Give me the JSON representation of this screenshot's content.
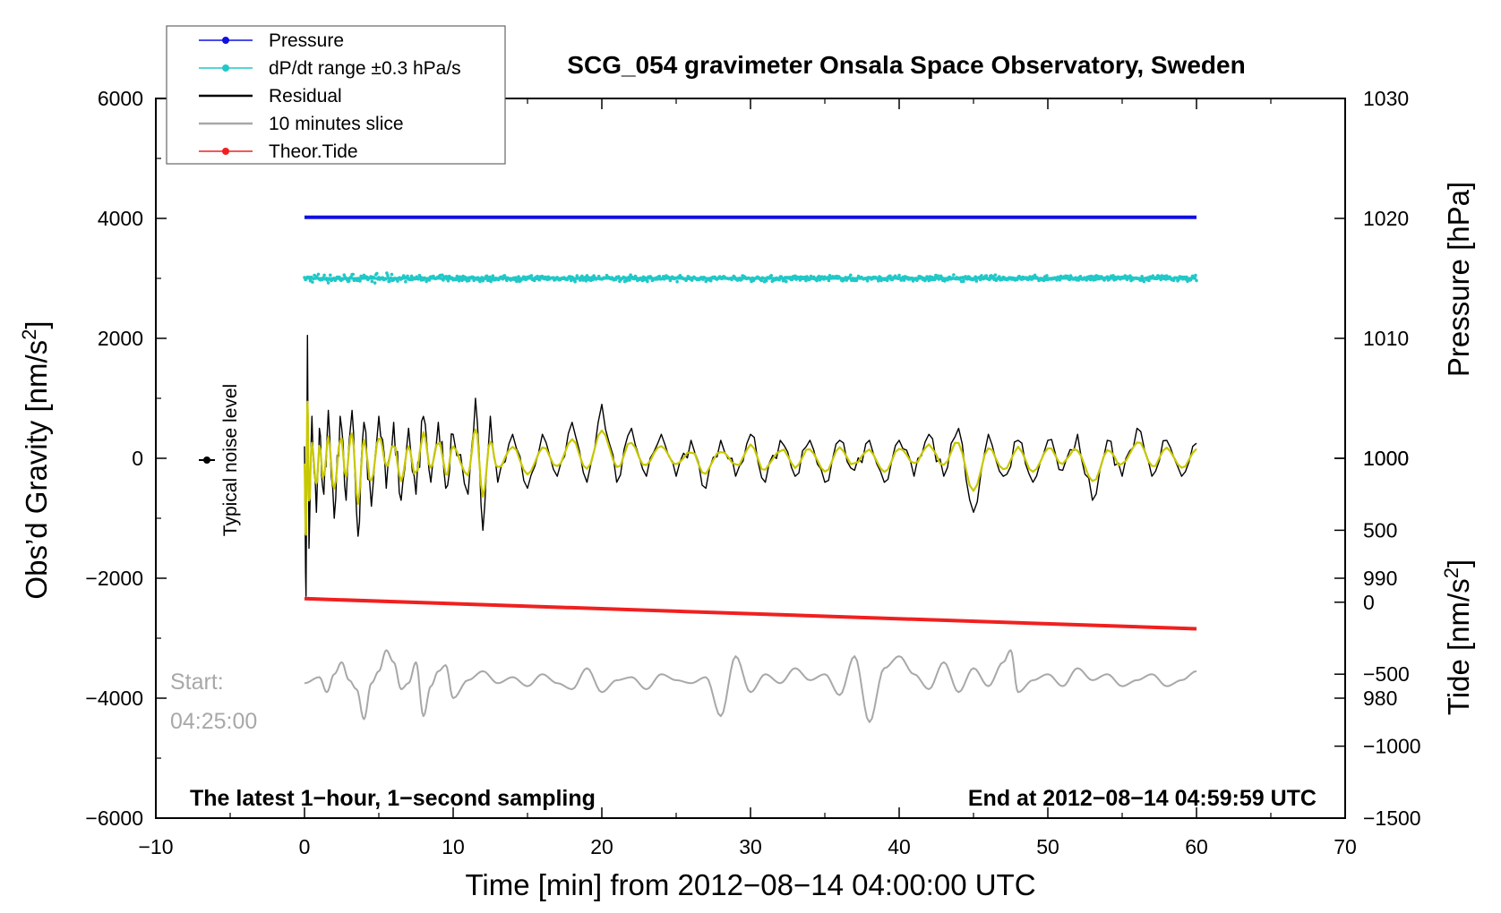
{
  "chart_data": {
    "type": "line",
    "title": "SCG_054 gravimeter Onsala Space Observatory, Sweden",
    "xlabel": "Time [min] from 2012−08−14 04:00:00 UTC",
    "ylabel_left": "Obs’d Gravity [nm/s",
    "ylabel_left_sup": "2",
    "ylabel_left_close": "]",
    "ylabel_right_pressure": "Pressure [hPa]",
    "ylabel_right_tide": "Tide [nm/s",
    "ylabel_right_tide_sup": "2",
    "ylabel_right_tide_close": "]",
    "xlim": [
      -10,
      70
    ],
    "ylim_gravity": [
      -6000,
      6000
    ],
    "ylim_pressure": [
      970,
      1030
    ],
    "ylim_tide": [
      -1500,
      3500
    ],
    "x_ticks": [
      -10,
      0,
      10,
      20,
      30,
      40,
      50,
      60,
      70
    ],
    "x_tick_labels": [
      "−10",
      "0",
      "10",
      "20",
      "30",
      "40",
      "50",
      "60",
      "70"
    ],
    "gravity_ticks": [
      -6000,
      -4000,
      -2000,
      0,
      2000,
      4000,
      6000
    ],
    "gravity_tick_labels": [
      "−6000",
      "−4000",
      "−2000",
      "0",
      "2000",
      "4000",
      "6000"
    ],
    "pressure_ticks": [
      980,
      990,
      1000,
      1010,
      1020,
      1030
    ],
    "pressure_tick_labels": [
      "980",
      "990",
      "1000",
      "1010",
      "1020",
      "1030"
    ],
    "tide_ticks": [
      -1500,
      -1000,
      -500,
      0,
      500,
      1000
    ],
    "tide_tick_labels": [
      "−1500",
      "−1000",
      "−500",
      "0",
      "500",
      "1000"
    ],
    "legend": [
      {
        "label": "Pressure",
        "color": "#1010e0",
        "marker": true
      },
      {
        "label": "dP/dt range ±0.3 hPa/s",
        "color": "#20c8c8",
        "marker": true
      },
      {
        "label": "Residual",
        "color": "#000000",
        "marker": false
      },
      {
        "label": "10 minutes slice",
        "color": "#a8a8a8",
        "marker": false
      },
      {
        "label": "Theor.Tide",
        "color": "#f02020",
        "marker": true
      }
    ],
    "annotations": {
      "noise_label": "Typical noise level",
      "start_label": "Start:",
      "start_time": "04:25:00",
      "bottom_left": "The latest 1−hour, 1−second sampling",
      "bottom_right": "End at 2012−08−14 04:59:59 UTC"
    },
    "series": [
      {
        "name": "Pressure",
        "axis": "pressure",
        "color": "#1010e0",
        "x": [
          0,
          60
        ],
        "y": [
          1020.1,
          1020.1
        ]
      },
      {
        "name": "dP/dt range ±0.3 hPa/s",
        "axis": "gravity",
        "color": "#20c8c8",
        "center": 3000,
        "spread": 60,
        "x": [
          0,
          60
        ]
      },
      {
        "name": "Residual",
        "axis": "gravity",
        "color": "#000000",
        "x": [
          0,
          0.1,
          0.2,
          0.3,
          0.5,
          0.8,
          1.0,
          1.3,
          1.6,
          2.0,
          2.4,
          2.8,
          3.2,
          3.6,
          4.0,
          4.5,
          5.0,
          5.5,
          6.0,
          6.5,
          7.0,
          7.5,
          8.0,
          8.5,
          9.0,
          9.5,
          10,
          11,
          11.5,
          12,
          12.5,
          13,
          14,
          15,
          16,
          17,
          18,
          19,
          20,
          21,
          22,
          23,
          24,
          25,
          26,
          27,
          28,
          29,
          30,
          31,
          32,
          33,
          34,
          35,
          36,
          37,
          38,
          39,
          40,
          41,
          42,
          43,
          44,
          45,
          46,
          47,
          48,
          49,
          50,
          51,
          52,
          53,
          54,
          55,
          56,
          57,
          58,
          59,
          60
        ],
        "y": [
          200,
          -2300,
          2050,
          -1500,
          700,
          -900,
          500,
          -600,
          800,
          -1000,
          700,
          -700,
          800,
          -1300,
          600,
          -800,
          700,
          -500,
          600,
          -700,
          500,
          -600,
          700,
          -400,
          600,
          -500,
          400,
          -600,
          1000,
          -1200,
          700,
          -400,
          400,
          -500,
          400,
          -300,
          600,
          -400,
          900,
          -400,
          500,
          -300,
          400,
          -300,
          300,
          -500,
          300,
          -300,
          400,
          -400,
          300,
          -300,
          300,
          -400,
          300,
          -200,
          300,
          -400,
          300,
          -300,
          400,
          -300,
          500,
          -900,
          400,
          -300,
          300,
          -400,
          300,
          -200,
          400,
          -700,
          300,
          -300,
          500,
          -300,
          300,
          -300,
          250
        ]
      },
      {
        "name": "10 minutes slice",
        "axis": "gravity",
        "color": "#a8a8a8",
        "x": [
          0,
          1,
          1.5,
          2,
          2.5,
          3,
          3.5,
          4,
          4.5,
          5,
          5.5,
          6,
          6.5,
          7,
          7.5,
          8,
          8.5,
          9,
          9.5,
          10,
          11,
          12,
          13,
          14,
          15,
          16,
          17,
          18,
          19,
          20,
          21,
          22,
          23,
          24,
          25,
          26,
          27,
          28,
          29,
          30,
          31,
          32,
          33,
          34,
          35,
          36,
          37,
          38,
          39,
          40,
          41,
          42,
          43,
          44,
          45,
          46,
          47,
          47.5,
          48,
          49,
          50,
          51,
          52,
          53,
          54,
          55,
          56,
          57,
          58,
          59,
          60
        ],
        "y": [
          -3750,
          -3650,
          -3900,
          -3600,
          -3400,
          -3700,
          -3850,
          -4350,
          -3750,
          -3550,
          -3200,
          -3400,
          -3850,
          -3750,
          -3400,
          -4300,
          -3800,
          -3550,
          -3450,
          -4000,
          -3700,
          -3550,
          -3750,
          -3650,
          -3800,
          -3600,
          -3750,
          -3850,
          -3500,
          -3900,
          -3700,
          -3650,
          -3850,
          -3600,
          -3700,
          -3750,
          -3650,
          -4300,
          -3300,
          -3900,
          -3600,
          -3750,
          -3500,
          -3700,
          -3600,
          -3950,
          -3300,
          -4400,
          -3500,
          -3300,
          -3600,
          -3850,
          -3400,
          -3900,
          -3500,
          -3800,
          -3400,
          -3200,
          -3900,
          -3700,
          -3600,
          -3800,
          -3500,
          -3700,
          -3600,
          -3800,
          -3700,
          -3600,
          -3800,
          -3700,
          -3550
        ]
      },
      {
        "name": "Theor.Tide",
        "axis": "tide",
        "color": "#f02020",
        "x": [
          0,
          60
        ],
        "y": [
          25,
          -185
        ]
      }
    ]
  }
}
